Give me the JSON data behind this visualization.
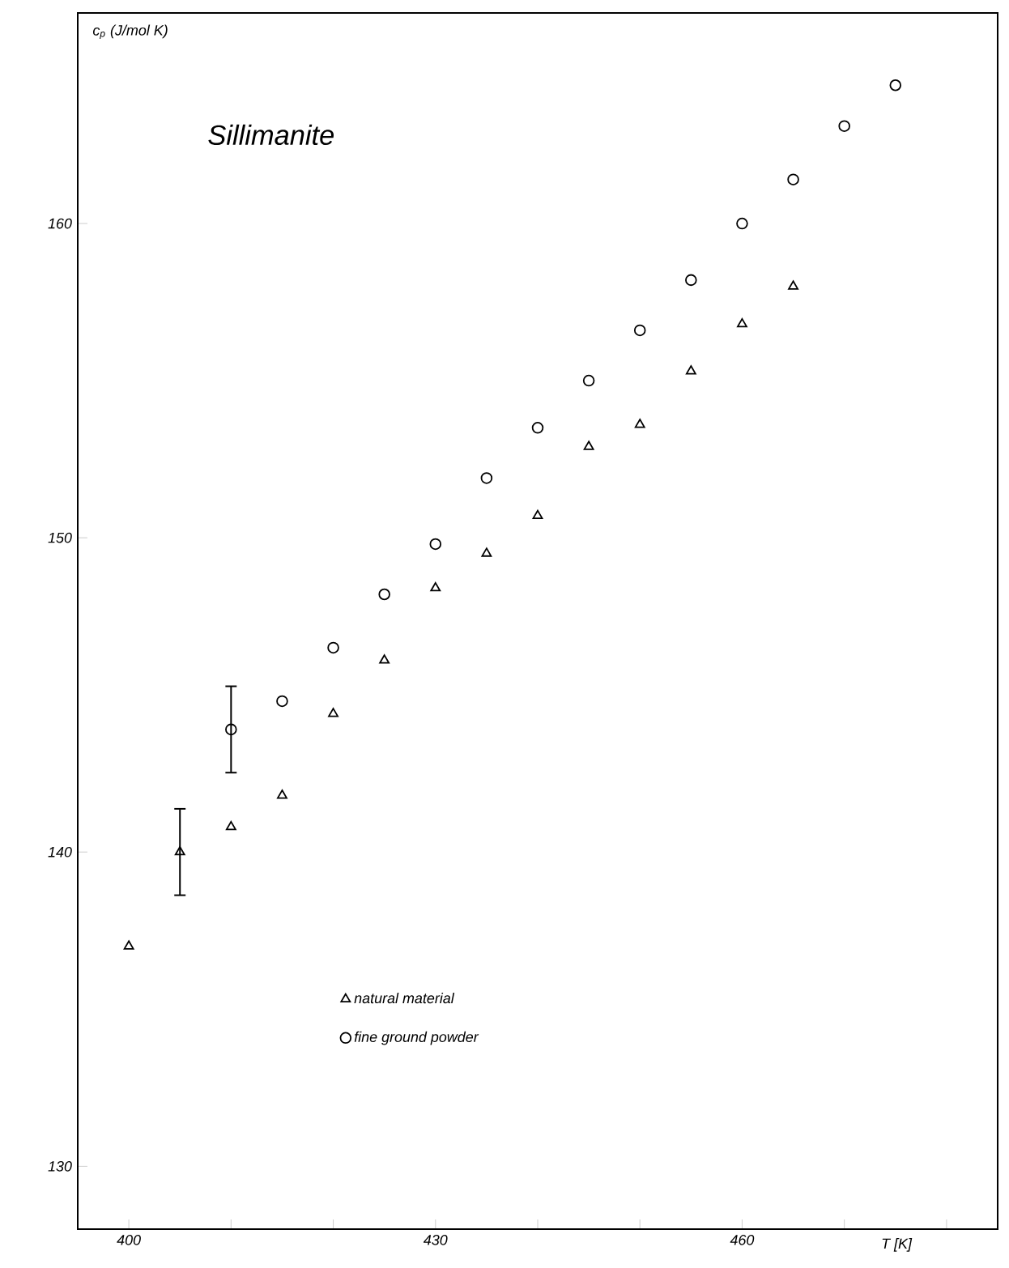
{
  "chart_data": {
    "type": "scatter",
    "title": "Sillimanite",
    "ylabel": "c$_{p}$ (J/mol K)",
    "xlabel": "T [K]",
    "xlim": [
      395,
      485
    ],
    "ylim": [
      128,
      166.7
    ],
    "xticks": [
      400,
      {
        "value": 410,
        "label": null
      },
      {
        "value": 420,
        "label": null
      },
      430,
      {
        "value": 440,
        "label": null
      },
      {
        "value": 450,
        "label": null
      },
      460,
      {
        "value": 470,
        "label": null
      },
      {
        "value": 480,
        "label": null
      }
    ],
    "yticks": [
      130,
      140,
      150,
      160
    ],
    "grid": false,
    "legend": "bottom",
    "series": [
      {
        "name": "natural material",
        "color": "#000000",
        "marker": "triangle",
        "x": [
          400,
          405,
          410,
          415,
          420,
          425,
          430,
          435,
          440,
          445,
          450,
          455,
          460,
          465
        ],
        "values": [
          137.0,
          140.0,
          140.8,
          141.8,
          144.4,
          146.1,
          148.4,
          149.5,
          150.7,
          152.9,
          153.6,
          155.3,
          156.8,
          158.0
        ],
        "errors": [
          null,
          1.4,
          null,
          null,
          null,
          null,
          null,
          null,
          null,
          null,
          null,
          null,
          null,
          null
        ]
      },
      {
        "name": "fine ground powder",
        "color": "#000000",
        "marker": "circle",
        "x": [
          410,
          415,
          420,
          425,
          430,
          435,
          440,
          445,
          450,
          455,
          460,
          465,
          470,
          475
        ],
        "values": [
          143.9,
          144.8,
          146.5,
          148.2,
          149.8,
          151.9,
          153.5,
          155.0,
          156.6,
          158.2,
          160.0,
          161.4,
          163.1,
          164.4
        ],
        "errors": [
          1.4,
          null,
          null,
          null,
          null,
          null,
          null,
          null,
          null,
          null,
          null,
          null,
          null,
          null
        ]
      }
    ]
  }
}
